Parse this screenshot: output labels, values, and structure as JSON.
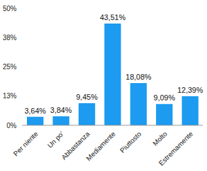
{
  "chart_data": {
    "type": "bar",
    "categories": [
      "Per niente",
      "Un po'",
      "Abbastanza",
      "Mediamente",
      "Piuttosto",
      "Molto",
      "Estremamente"
    ],
    "values": [
      3.64,
      3.84,
      9.45,
      43.51,
      18.08,
      9.09,
      12.39
    ],
    "value_labels": [
      "3,64%",
      "3,84%",
      "9,45%",
      "43,51%",
      "18,08%",
      "9,09%",
      "12,39%"
    ],
    "data_labels": true,
    "color": "#1c9bf0",
    "ylim": [
      0,
      50
    ],
    "yticks": [
      {
        "value": 0,
        "label": "0%"
      },
      {
        "value": 12.5,
        "label": "13%"
      },
      {
        "value": 25,
        "label": "25%"
      },
      {
        "value": 37.5,
        "label": "38%"
      },
      {
        "value": 50,
        "label": "50%"
      }
    ],
    "grid": false
  }
}
